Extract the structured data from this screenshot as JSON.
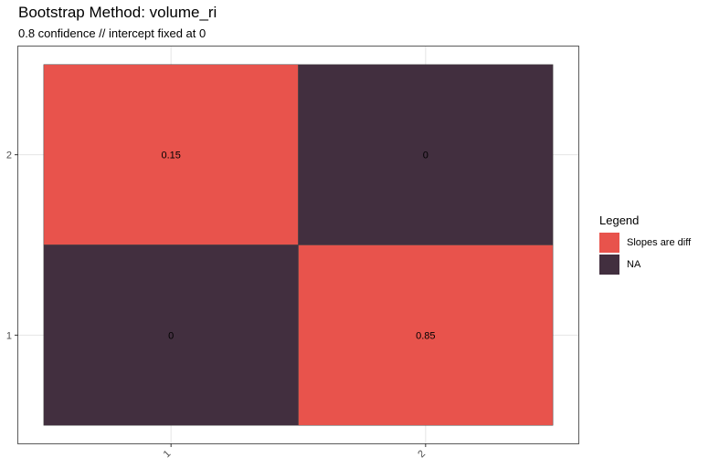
{
  "chart_data": {
    "type": "heatmap",
    "title": "Bootstrap Method: volume_ri",
    "subtitle": "0.8 confidence // intercept fixed at 0",
    "x_categories": [
      "1",
      "2"
    ],
    "y_categories": [
      "1",
      "2"
    ],
    "cells": [
      {
        "x": "1",
        "y": "2",
        "value": 0.15,
        "label": "0.15",
        "group": "Slopes are diff"
      },
      {
        "x": "2",
        "y": "2",
        "value": 0,
        "label": "0",
        "group": "NA"
      },
      {
        "x": "1",
        "y": "1",
        "value": 0,
        "label": "0",
        "group": "NA"
      },
      {
        "x": "2",
        "y": "1",
        "value": 0.85,
        "label": "0.85",
        "group": "Slopes are diff"
      }
    ],
    "grid": true,
    "legend": {
      "title": "Legend",
      "position": "right",
      "entries": [
        {
          "label": "Slopes are diff",
          "color": "#E8534C"
        },
        {
          "label": "NA",
          "color": "#422F3F"
        }
      ]
    }
  }
}
